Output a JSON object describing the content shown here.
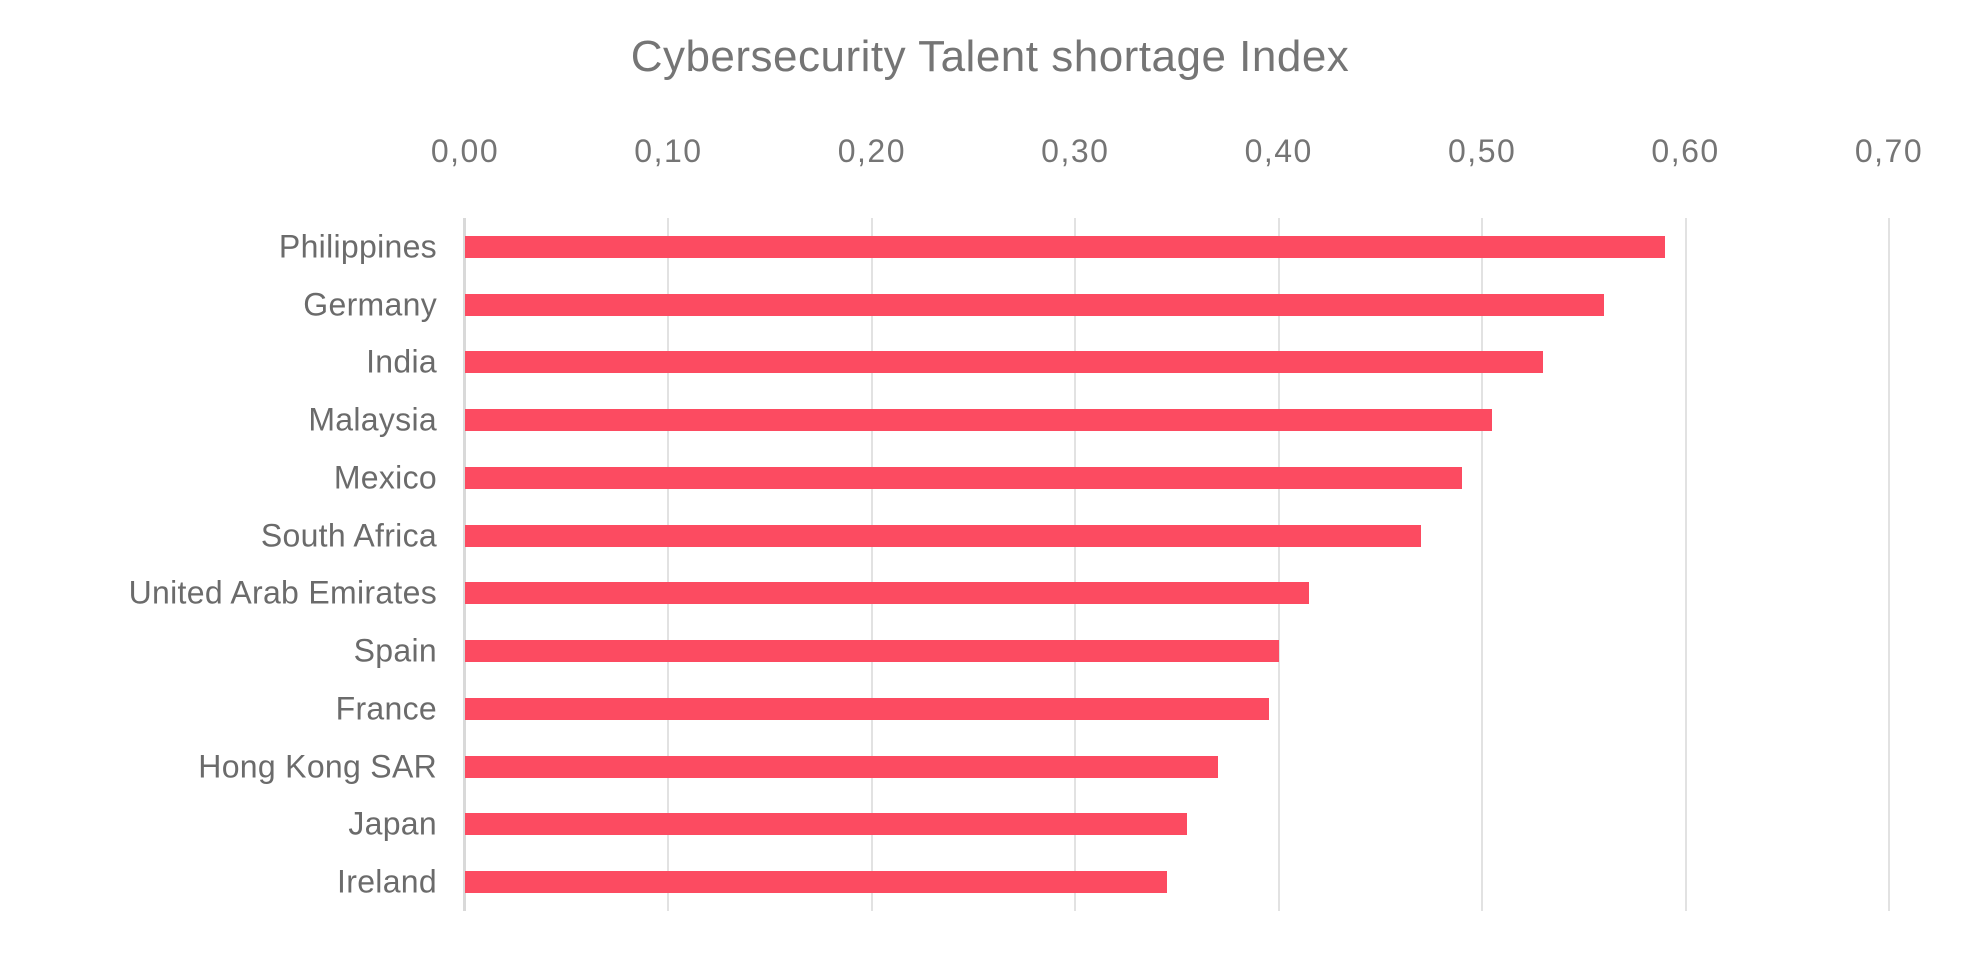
{
  "title": "Cybersecurity Talent shortage Index",
  "colors": {
    "bar": "#fc4b61",
    "gridline": "#e2e2e2",
    "axis_line": "#d9d9d9",
    "title_text": "#757575",
    "tick_text": "#757575",
    "label_text": "#6b6b6b",
    "background": "#ffffff"
  },
  "chart_data": {
    "type": "bar",
    "orientation": "horizontal",
    "title": "Cybersecurity Talent shortage Index",
    "categories": [
      "Philippines",
      "Germany",
      "India",
      "Malaysia",
      "Mexico",
      "South Africa",
      "United Arab Emirates",
      "Spain",
      "France",
      "Hong Kong SAR",
      "Japan",
      "Ireland"
    ],
    "values": [
      0.59,
      0.56,
      0.53,
      0.505,
      0.49,
      0.47,
      0.415,
      0.4,
      0.395,
      0.37,
      0.355,
      0.345
    ],
    "x_ticks": [
      "0,00",
      "0,10",
      "0,20",
      "0,30",
      "0,40",
      "0,50",
      "0,60",
      "0,70"
    ],
    "xlim": [
      0,
      0.7
    ],
    "tick_step": 0.1,
    "decimal_separator": ",",
    "xlabel": "",
    "ylabel": "",
    "grid": "vertical",
    "legend": "none"
  }
}
